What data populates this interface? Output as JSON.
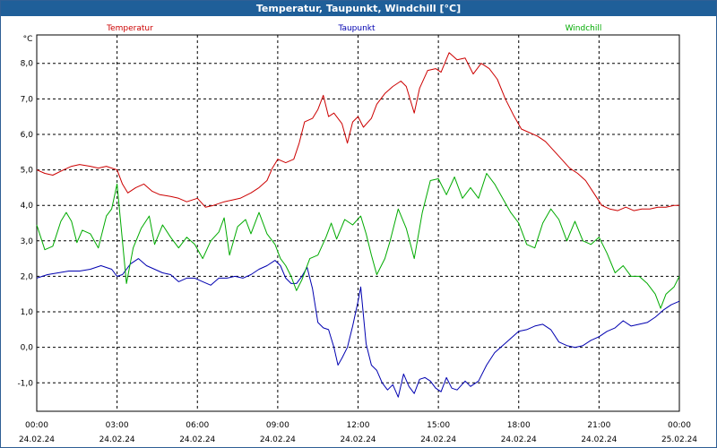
{
  "window": {
    "title": "Temperatur, Taupunkt, Windchill [°C]"
  },
  "chart_data": {
    "type": "line",
    "title": "Temperatur, Taupunkt, Windchill [°C]",
    "ylabel": "°C",
    "xlabel": "",
    "ylim": [
      -1.8,
      8.8
    ],
    "xlim": [
      0,
      24
    ],
    "grid": true,
    "legend_placement": "top",
    "y_ticks": [
      {
        "value": 8,
        "label": "8,0"
      },
      {
        "value": 7,
        "label": "7,0"
      },
      {
        "value": 6,
        "label": "6,0"
      },
      {
        "value": 5,
        "label": "5,0"
      },
      {
        "value": 4,
        "label": "4,0"
      },
      {
        "value": 3,
        "label": "3,0"
      },
      {
        "value": 2,
        "label": "2,0"
      },
      {
        "value": 1,
        "label": "1,0"
      },
      {
        "value": 0,
        "label": "0,0"
      },
      {
        "value": -1,
        "label": "-1,0"
      }
    ],
    "x_ticks": [
      {
        "value": 0,
        "time": "00:00",
        "date": "24.02.24"
      },
      {
        "value": 3,
        "time": "03:00",
        "date": "24.02.24"
      },
      {
        "value": 6,
        "time": "06:00",
        "date": "24.02.24"
      },
      {
        "value": 9,
        "time": "09:00",
        "date": "24.02.24"
      },
      {
        "value": 12,
        "time": "12:00",
        "date": "24.02.24"
      },
      {
        "value": 15,
        "time": "15:00",
        "date": "24.02.24"
      },
      {
        "value": 18,
        "time": "18:00",
        "date": "24.02.24"
      },
      {
        "value": 21,
        "time": "21:00",
        "date": "24.02.24"
      },
      {
        "value": 24,
        "time": "00:00",
        "date": "25.02.24"
      }
    ],
    "series": [
      {
        "name": "Temperatur",
        "color": "#cc0000",
        "legend_align": "left",
        "points": [
          [
            0,
            5.0
          ],
          [
            0.3,
            4.9
          ],
          [
            0.6,
            4.85
          ],
          [
            1.0,
            5.0
          ],
          [
            1.3,
            5.1
          ],
          [
            1.6,
            5.15
          ],
          [
            2.0,
            5.1
          ],
          [
            2.3,
            5.05
          ],
          [
            2.6,
            5.1
          ],
          [
            3.0,
            5.0
          ],
          [
            3.2,
            4.6
          ],
          [
            3.4,
            4.35
          ],
          [
            3.7,
            4.5
          ],
          [
            4.0,
            4.6
          ],
          [
            4.3,
            4.4
          ],
          [
            4.6,
            4.3
          ],
          [
            5.0,
            4.25
          ],
          [
            5.3,
            4.2
          ],
          [
            5.6,
            4.1
          ],
          [
            6.0,
            4.2
          ],
          [
            6.3,
            3.95
          ],
          [
            6.6,
            4.0
          ],
          [
            7.0,
            4.1
          ],
          [
            7.3,
            4.15
          ],
          [
            7.6,
            4.2
          ],
          [
            8.0,
            4.35
          ],
          [
            8.3,
            4.5
          ],
          [
            8.6,
            4.7
          ],
          [
            8.8,
            5.05
          ],
          [
            9.0,
            5.3
          ],
          [
            9.3,
            5.2
          ],
          [
            9.6,
            5.3
          ],
          [
            9.8,
            5.75
          ],
          [
            10.0,
            6.35
          ],
          [
            10.3,
            6.45
          ],
          [
            10.5,
            6.7
          ],
          [
            10.7,
            7.1
          ],
          [
            10.9,
            6.5
          ],
          [
            11.1,
            6.6
          ],
          [
            11.4,
            6.3
          ],
          [
            11.6,
            5.75
          ],
          [
            11.8,
            6.35
          ],
          [
            12.0,
            6.5
          ],
          [
            12.2,
            6.2
          ],
          [
            12.5,
            6.45
          ],
          [
            12.7,
            6.85
          ],
          [
            13.0,
            7.15
          ],
          [
            13.3,
            7.35
          ],
          [
            13.6,
            7.5
          ],
          [
            13.8,
            7.35
          ],
          [
            14.1,
            6.6
          ],
          [
            14.3,
            7.3
          ],
          [
            14.6,
            7.8
          ],
          [
            14.9,
            7.85
          ],
          [
            15.1,
            7.75
          ],
          [
            15.4,
            8.3
          ],
          [
            15.7,
            8.1
          ],
          [
            16.0,
            8.15
          ],
          [
            16.3,
            7.7
          ],
          [
            16.6,
            8.0
          ],
          [
            16.9,
            7.85
          ],
          [
            17.2,
            7.55
          ],
          [
            17.5,
            7.0
          ],
          [
            17.8,
            6.55
          ],
          [
            18.1,
            6.15
          ],
          [
            18.4,
            6.05
          ],
          [
            18.7,
            5.95
          ],
          [
            19.0,
            5.8
          ],
          [
            19.3,
            5.55
          ],
          [
            19.6,
            5.3
          ],
          [
            19.9,
            5.05
          ],
          [
            20.2,
            4.9
          ],
          [
            20.5,
            4.7
          ],
          [
            20.8,
            4.35
          ],
          [
            21.1,
            4.0
          ],
          [
            21.4,
            3.9
          ],
          [
            21.7,
            3.85
          ],
          [
            22.0,
            3.95
          ],
          [
            22.3,
            3.85
          ],
          [
            22.6,
            3.9
          ],
          [
            22.9,
            3.9
          ],
          [
            23.2,
            3.95
          ],
          [
            23.5,
            3.95
          ],
          [
            23.8,
            4.0
          ],
          [
            24.0,
            4.0
          ]
        ]
      },
      {
        "name": "Taupunkt",
        "color": "#0000b0",
        "legend_align": "center",
        "points": [
          [
            0,
            1.95
          ],
          [
            0.4,
            2.05
          ],
          [
            0.8,
            2.1
          ],
          [
            1.2,
            2.15
          ],
          [
            1.6,
            2.15
          ],
          [
            2.0,
            2.2
          ],
          [
            2.4,
            2.3
          ],
          [
            2.8,
            2.2
          ],
          [
            3.0,
            2.0
          ],
          [
            3.2,
            2.05
          ],
          [
            3.5,
            2.35
          ],
          [
            3.8,
            2.5
          ],
          [
            4.1,
            2.3
          ],
          [
            4.4,
            2.2
          ],
          [
            4.7,
            2.1
          ],
          [
            5.0,
            2.05
          ],
          [
            5.3,
            1.85
          ],
          [
            5.6,
            1.95
          ],
          [
            5.9,
            1.95
          ],
          [
            6.2,
            1.85
          ],
          [
            6.5,
            1.75
          ],
          [
            6.8,
            1.95
          ],
          [
            7.1,
            1.95
          ],
          [
            7.4,
            2.0
          ],
          [
            7.7,
            1.95
          ],
          [
            8.0,
            2.05
          ],
          [
            8.3,
            2.2
          ],
          [
            8.6,
            2.3
          ],
          [
            8.9,
            2.45
          ],
          [
            9.1,
            2.3
          ],
          [
            9.3,
            1.95
          ],
          [
            9.5,
            1.8
          ],
          [
            9.7,
            1.8
          ],
          [
            9.9,
            2.0
          ],
          [
            10.1,
            2.25
          ],
          [
            10.3,
            1.65
          ],
          [
            10.5,
            0.7
          ],
          [
            10.7,
            0.55
          ],
          [
            10.9,
            0.5
          ],
          [
            11.1,
            0.0
          ],
          [
            11.25,
            -0.5
          ],
          [
            11.4,
            -0.3
          ],
          [
            11.6,
            0.0
          ],
          [
            11.8,
            0.6
          ],
          [
            12.0,
            1.3
          ],
          [
            12.1,
            1.7
          ],
          [
            12.3,
            0.1
          ],
          [
            12.5,
            -0.5
          ],
          [
            12.7,
            -0.65
          ],
          [
            12.9,
            -1.0
          ],
          [
            13.1,
            -1.2
          ],
          [
            13.3,
            -1.05
          ],
          [
            13.5,
            -1.4
          ],
          [
            13.7,
            -0.75
          ],
          [
            13.9,
            -1.1
          ],
          [
            14.1,
            -1.3
          ],
          [
            14.3,
            -0.9
          ],
          [
            14.5,
            -0.85
          ],
          [
            14.7,
            -0.95
          ],
          [
            14.9,
            -1.15
          ],
          [
            15.1,
            -1.25
          ],
          [
            15.3,
            -0.85
          ],
          [
            15.5,
            -1.15
          ],
          [
            15.7,
            -1.2
          ],
          [
            16.0,
            -0.95
          ],
          [
            16.2,
            -1.1
          ],
          [
            16.5,
            -0.95
          ],
          [
            16.8,
            -0.5
          ],
          [
            17.1,
            -0.15
          ],
          [
            17.4,
            0.05
          ],
          [
            17.7,
            0.25
          ],
          [
            18.0,
            0.45
          ],
          [
            18.3,
            0.5
          ],
          [
            18.6,
            0.6
          ],
          [
            18.9,
            0.65
          ],
          [
            19.2,
            0.5
          ],
          [
            19.5,
            0.15
          ],
          [
            19.8,
            0.05
          ],
          [
            20.1,
            0.0
          ],
          [
            20.4,
            0.05
          ],
          [
            20.7,
            0.2
          ],
          [
            21.0,
            0.3
          ],
          [
            21.3,
            0.45
          ],
          [
            21.6,
            0.55
          ],
          [
            21.9,
            0.75
          ],
          [
            22.2,
            0.6
          ],
          [
            22.5,
            0.65
          ],
          [
            22.8,
            0.7
          ],
          [
            23.1,
            0.85
          ],
          [
            23.4,
            1.05
          ],
          [
            23.7,
            1.2
          ],
          [
            24.0,
            1.3
          ]
        ]
      },
      {
        "name": "Windchill",
        "color": "#00aa00",
        "legend_align": "right",
        "points": [
          [
            0,
            3.45
          ],
          [
            0.3,
            2.75
          ],
          [
            0.6,
            2.85
          ],
          [
            0.9,
            3.55
          ],
          [
            1.1,
            3.8
          ],
          [
            1.3,
            3.55
          ],
          [
            1.5,
            2.95
          ],
          [
            1.7,
            3.3
          ],
          [
            2.0,
            3.2
          ],
          [
            2.3,
            2.8
          ],
          [
            2.6,
            3.7
          ],
          [
            2.8,
            3.9
          ],
          [
            3.0,
            4.6
          ],
          [
            3.2,
            3.0
          ],
          [
            3.35,
            1.8
          ],
          [
            3.6,
            2.8
          ],
          [
            3.9,
            3.35
          ],
          [
            4.2,
            3.7
          ],
          [
            4.4,
            2.9
          ],
          [
            4.7,
            3.45
          ],
          [
            5.0,
            3.1
          ],
          [
            5.3,
            2.8
          ],
          [
            5.6,
            3.1
          ],
          [
            5.9,
            2.9
          ],
          [
            6.2,
            2.5
          ],
          [
            6.5,
            3.0
          ],
          [
            6.8,
            3.25
          ],
          [
            7.0,
            3.65
          ],
          [
            7.2,
            2.6
          ],
          [
            7.5,
            3.4
          ],
          [
            7.8,
            3.6
          ],
          [
            8.0,
            3.2
          ],
          [
            8.3,
            3.8
          ],
          [
            8.6,
            3.2
          ],
          [
            8.9,
            2.9
          ],
          [
            9.1,
            2.5
          ],
          [
            9.3,
            2.3
          ],
          [
            9.5,
            2.0
          ],
          [
            9.7,
            1.6
          ],
          [
            9.9,
            1.9
          ],
          [
            10.2,
            2.5
          ],
          [
            10.5,
            2.6
          ],
          [
            10.8,
            3.1
          ],
          [
            11.0,
            3.5
          ],
          [
            11.2,
            3.05
          ],
          [
            11.5,
            3.6
          ],
          [
            11.8,
            3.45
          ],
          [
            12.1,
            3.7
          ],
          [
            12.3,
            3.2
          ],
          [
            12.5,
            2.6
          ],
          [
            12.7,
            2.05
          ],
          [
            13.0,
            2.5
          ],
          [
            13.2,
            3.0
          ],
          [
            13.5,
            3.9
          ],
          [
            13.8,
            3.35
          ],
          [
            14.1,
            2.5
          ],
          [
            14.4,
            3.8
          ],
          [
            14.7,
            4.7
          ],
          [
            15.0,
            4.75
          ],
          [
            15.3,
            4.3
          ],
          [
            15.6,
            4.8
          ],
          [
            15.9,
            4.2
          ],
          [
            16.2,
            4.5
          ],
          [
            16.5,
            4.2
          ],
          [
            16.8,
            4.9
          ],
          [
            17.1,
            4.6
          ],
          [
            17.4,
            4.2
          ],
          [
            17.7,
            3.8
          ],
          [
            18.0,
            3.5
          ],
          [
            18.3,
            2.9
          ],
          [
            18.6,
            2.8
          ],
          [
            18.9,
            3.5
          ],
          [
            19.2,
            3.9
          ],
          [
            19.5,
            3.6
          ],
          [
            19.8,
            3.0
          ],
          [
            20.1,
            3.55
          ],
          [
            20.4,
            3.0
          ],
          [
            20.7,
            2.9
          ],
          [
            21.0,
            3.1
          ],
          [
            21.3,
            2.65
          ],
          [
            21.6,
            2.1
          ],
          [
            21.9,
            2.3
          ],
          [
            22.2,
            2.0
          ],
          [
            22.5,
            2.0
          ],
          [
            22.8,
            1.8
          ],
          [
            23.1,
            1.5
          ],
          [
            23.3,
            1.1
          ],
          [
            23.5,
            1.5
          ],
          [
            23.8,
            1.7
          ],
          [
            24.0,
            2.0
          ]
        ]
      }
    ]
  }
}
